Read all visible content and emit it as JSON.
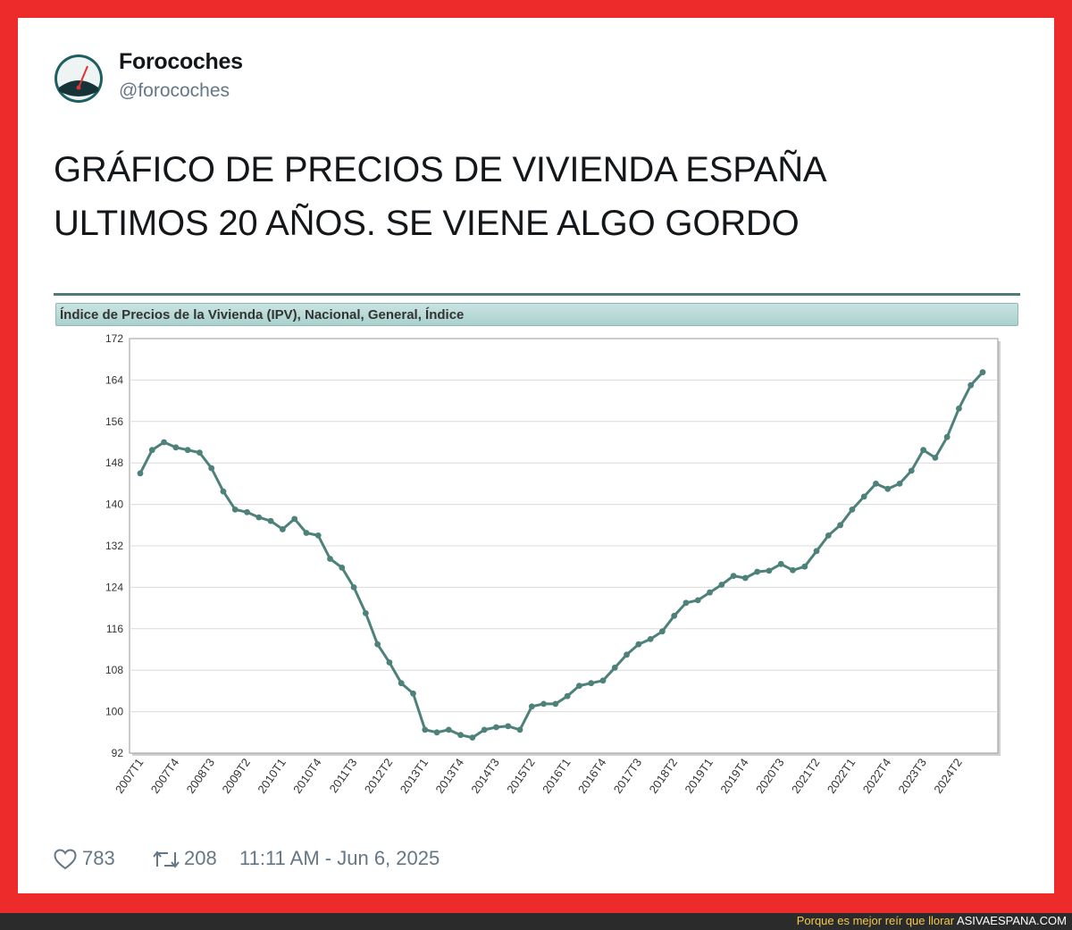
{
  "tweet": {
    "author_name": "Forocoches",
    "author_handle": "@forocoches",
    "text_line1": "GRÁFICO DE PRECIOS DE VIVIENDA ESPAÑA",
    "text_line2": "ULTIMOS 20 AÑOS. SE VIENE ALGO GORDO",
    "likes": "783",
    "retweets": "208",
    "timestamp": "11:11 AM - Jun 6, 2025",
    "icons": {
      "like": "heart-icon",
      "retweet": "retweet-icon",
      "avatar": "speedometer-avatar-icon"
    }
  },
  "credit": {
    "tagline": "Porque es mejor reír que llorar",
    "site": "ASIVAESPANA.COM"
  },
  "colors": {
    "frame": "#ee2b2b",
    "line": "#4d8179",
    "tagline": "#f2c94c"
  },
  "chart_data": {
    "type": "line",
    "title": "Índice de Precios de la Vivienda (IPV), Nacional, General, Índice",
    "xlabel": "",
    "ylabel": "",
    "ylim": [
      92,
      172
    ],
    "yticks": [
      92,
      100,
      108,
      116,
      124,
      132,
      140,
      148,
      156,
      164,
      172
    ],
    "grid": true,
    "x_tick_labels": [
      "2007T1",
      "2007T4",
      "2008T3",
      "2009T2",
      "2010T1",
      "2010T4",
      "2011T3",
      "2012T2",
      "2013T1",
      "2013T4",
      "2014T3",
      "2015T2",
      "2016T1",
      "2016T4",
      "2017T3",
      "2018T2",
      "2019T1",
      "2019T4",
      "2020T3",
      "2021T2",
      "2022T1",
      "2022T4",
      "2023T3",
      "2024T2"
    ],
    "series": [
      {
        "name": "IPV Nacional General",
        "values": [
          146,
          150.5,
          152,
          151,
          150.5,
          150,
          147,
          142.5,
          139,
          138.5,
          137.5,
          136.8,
          135.2,
          137.2,
          134.5,
          134,
          129.5,
          127.8,
          124,
          119,
          113,
          109.5,
          105.5,
          103.5,
          96.5,
          96,
          96.5,
          95.5,
          95,
          96.5,
          97,
          97.2,
          96.5,
          101,
          101.5,
          101.5,
          103,
          105,
          105.5,
          106,
          108.5,
          111,
          113,
          114,
          115.5,
          118.5,
          121,
          121.5,
          123,
          124.5,
          126.2,
          125.8,
          127,
          127.2,
          128.5,
          127.3,
          128,
          131,
          134,
          136,
          139,
          141.5,
          144,
          143,
          144,
          146.5,
          150.5,
          149,
          153,
          158.5,
          163,
          165.5
        ]
      }
    ]
  }
}
